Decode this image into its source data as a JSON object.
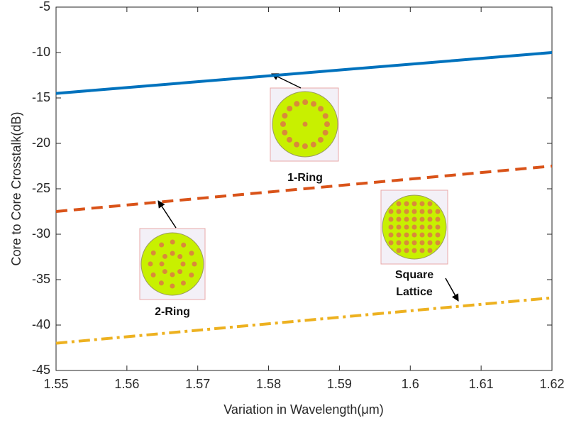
{
  "chart_data": {
    "type": "line",
    "x_label": "Variation in Wavelength(μm)",
    "y_label": "Core to Core Crosstalk(dB)",
    "xlim": [
      1.55,
      1.62
    ],
    "ylim": [
      -45,
      -5
    ],
    "xticks": [
      1.55,
      1.56,
      1.57,
      1.58,
      1.59,
      1.6,
      1.61,
      1.62
    ],
    "yticks": [
      -45,
      -40,
      -35,
      -30,
      -25,
      -20,
      -15,
      -10,
      -5
    ],
    "grid": false,
    "series": [
      {
        "color": "#0072bd",
        "style": "solid",
        "x": [
          1.55,
          1.62
        ],
        "values": [
          -14.5,
          -10
        ]
      },
      {
        "color": "#d95319",
        "style": "dashed",
        "x": [
          1.55,
          1.62
        ],
        "values": [
          -27.5,
          -22.5
        ]
      },
      {
        "color": "#edb120",
        "style": "dashdot",
        "x": [
          1.55,
          1.62
        ],
        "values": [
          -42,
          -37
        ]
      }
    ],
    "annotations": [
      {
        "lines": [
          "1-Ring"
        ]
      },
      {
        "lines": [
          "2-Ring"
        ]
      },
      {
        "lines": [
          "Square",
          "Lattice"
        ]
      }
    ]
  }
}
